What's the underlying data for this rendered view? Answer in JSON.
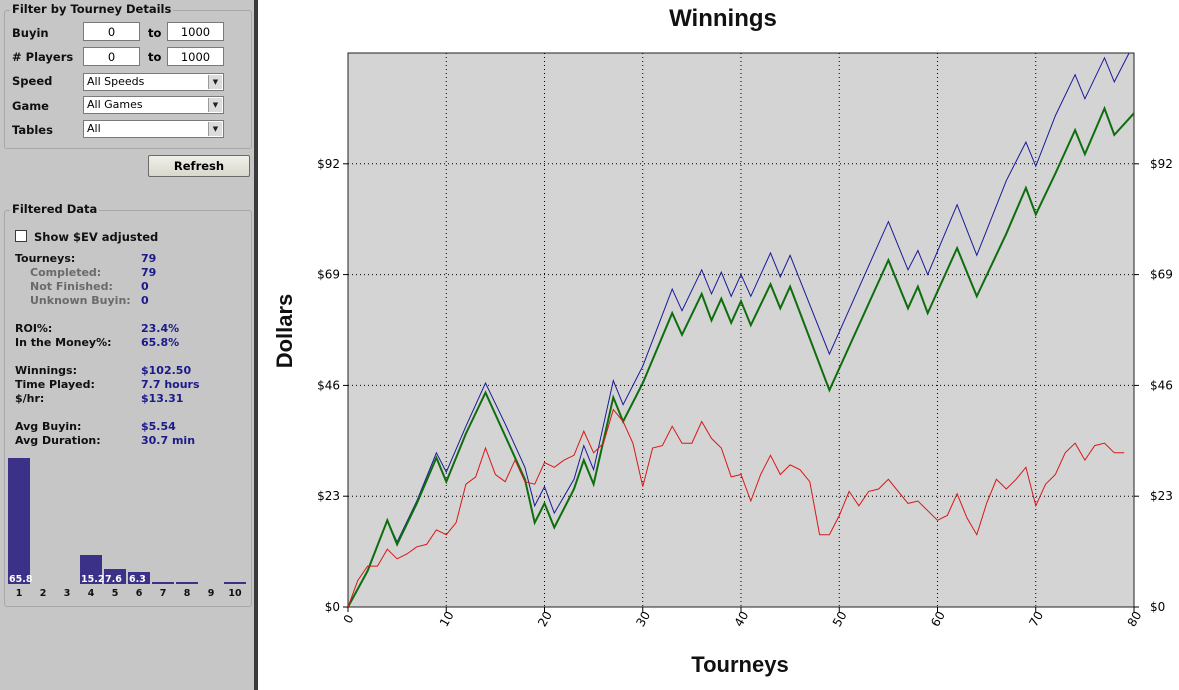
{
  "filter": {
    "title": "Filter by Tourney Details",
    "buyin_label": "Buyin",
    "buyin_min": "0",
    "buyin_max": "1000",
    "players_label": "# Players",
    "players_min": "0",
    "players_max": "1000",
    "to_label": "to",
    "speed_label": "Speed",
    "speed_value": "All Speeds",
    "game_label": "Game",
    "game_value": "All Games",
    "tables_label": "Tables",
    "tables_value": "All",
    "refresh_label": "Refresh"
  },
  "filtered": {
    "title": "Filtered Data",
    "show_ev_label": "Show $EV adjusted",
    "show_ev_checked": false,
    "stats": [
      {
        "key": "Tourneys:",
        "value": "79",
        "sub": false
      },
      {
        "key": "Completed:",
        "value": "79",
        "sub": true
      },
      {
        "key": "Not Finished:",
        "value": "0",
        "sub": true
      },
      {
        "key": "Unknown Buyin:",
        "value": "0",
        "sub": true
      },
      {
        "key": "ROI%:",
        "value": "23.4%",
        "sub": false
      },
      {
        "key": "In the Money%:",
        "value": "65.8%",
        "sub": false
      },
      {
        "key": "Winnings:",
        "value": "$102.50",
        "sub": false
      },
      {
        "key": "Time Played:",
        "value": "7.7 hours",
        "sub": false
      },
      {
        "key": "$/hr:",
        "value": "$13.31",
        "sub": false
      },
      {
        "key": "Avg Buyin:",
        "value": "$5.54",
        "sub": false
      },
      {
        "key": "Avg Duration:",
        "value": "30.7 min",
        "sub": false
      }
    ]
  },
  "finish_histogram": {
    "positions": [
      "1",
      "2",
      "3",
      "4",
      "5",
      "6",
      "7",
      "8",
      "9",
      "10"
    ],
    "percents": [
      65.8,
      0,
      0,
      15.2,
      7.6,
      6.3,
      0.8,
      0.8,
      0,
      0.8
    ],
    "labels": [
      "65.8",
      "",
      "",
      "15.2",
      "7.6",
      "6.3",
      "",
      "",
      "",
      ""
    ],
    "color": "#3c3188"
  },
  "chart_data": {
    "type": "line",
    "title": "Winnings",
    "xlabel": "Tourneys",
    "ylabel": "Dollars",
    "xlim": [
      0,
      80
    ],
    "ylim": [
      0,
      115
    ],
    "x_ticks": [
      "0",
      "10",
      "20",
      "30",
      "40",
      "50",
      "60",
      "70",
      "80"
    ],
    "y_ticks": [
      "$0",
      "$23",
      "$46",
      "$69",
      "$92"
    ],
    "y_tick_values": [
      0,
      23,
      46,
      69,
      92
    ],
    "grid": true,
    "background": "#d4d4d4",
    "series": [
      {
        "color": "#1a1a9a",
        "width": 1,
        "points": [
          [
            0,
            0
          ],
          [
            2,
            7.5
          ],
          [
            4,
            18
          ],
          [
            5,
            13.5
          ],
          [
            7,
            22
          ],
          [
            9,
            32
          ],
          [
            10,
            28
          ],
          [
            12,
            37.5
          ],
          [
            14,
            46.5
          ],
          [
            16,
            38
          ],
          [
            18,
            29
          ],
          [
            19,
            21
          ],
          [
            20,
            25
          ],
          [
            21,
            19.5
          ],
          [
            23,
            26.5
          ],
          [
            24,
            33.5
          ],
          [
            25,
            28.5
          ],
          [
            27,
            47
          ],
          [
            28,
            42
          ],
          [
            30,
            50
          ],
          [
            33,
            66
          ],
          [
            34,
            61.5
          ],
          [
            36,
            70
          ],
          [
            37,
            65
          ],
          [
            38,
            69.5
          ],
          [
            39,
            64.5
          ],
          [
            40,
            69
          ],
          [
            41,
            64.5
          ],
          [
            43,
            73.5
          ],
          [
            44,
            68.5
          ],
          [
            45,
            73
          ],
          [
            49,
            52.5
          ],
          [
            55,
            80
          ],
          [
            57,
            70
          ],
          [
            58,
            74
          ],
          [
            59,
            69
          ],
          [
            62,
            83.5
          ],
          [
            64,
            73
          ],
          [
            67,
            88.5
          ],
          [
            69,
            96.5
          ],
          [
            70,
            91.5
          ],
          [
            72,
            102
          ],
          [
            74,
            110.5
          ],
          [
            75,
            105.5
          ],
          [
            77,
            114
          ],
          [
            78,
            109
          ],
          [
            80,
            117
          ]
        ]
      },
      {
        "color": "#0e6e0e",
        "width": 2,
        "points": [
          [
            0,
            0
          ],
          [
            2,
            7.5
          ],
          [
            4,
            18
          ],
          [
            5,
            13
          ],
          [
            7,
            21.5
          ],
          [
            9,
            31
          ],
          [
            10,
            26
          ],
          [
            12,
            36
          ],
          [
            14,
            44.5
          ],
          [
            16,
            35.5
          ],
          [
            18,
            26.5
          ],
          [
            19,
            17.5
          ],
          [
            20,
            21.5
          ],
          [
            21,
            16.5
          ],
          [
            23,
            24.5
          ],
          [
            24,
            30.5
          ],
          [
            25,
            25.5
          ],
          [
            27,
            43.5
          ],
          [
            28,
            38.5
          ],
          [
            30,
            46.5
          ],
          [
            33,
            61
          ],
          [
            34,
            56.5
          ],
          [
            36,
            65
          ],
          [
            37,
            59.5
          ],
          [
            38,
            64
          ],
          [
            39,
            59
          ],
          [
            40,
            63.5
          ],
          [
            41,
            58.5
          ],
          [
            43,
            67
          ],
          [
            44,
            62
          ],
          [
            45,
            66.5
          ],
          [
            49,
            45
          ],
          [
            55,
            72
          ],
          [
            57,
            62
          ],
          [
            58,
            66.5
          ],
          [
            59,
            61
          ],
          [
            62,
            74.5
          ],
          [
            64,
            64.5
          ],
          [
            67,
            77.5
          ],
          [
            69,
            87
          ],
          [
            70,
            81.5
          ],
          [
            72,
            90
          ],
          [
            74,
            99
          ],
          [
            75,
            94
          ],
          [
            77,
            103.5
          ],
          [
            78,
            98
          ],
          [
            80,
            102.5
          ]
        ]
      },
      {
        "color": "#d81818",
        "width": 1,
        "points": [
          [
            0,
            0
          ],
          [
            1,
            5.5
          ],
          [
            2,
            8.5
          ],
          [
            3,
            8.5
          ],
          [
            4,
            12
          ],
          [
            5,
            10
          ],
          [
            6,
            11
          ],
          [
            7,
            12.5
          ],
          [
            8,
            13
          ],
          [
            9,
            16
          ],
          [
            10,
            15
          ],
          [
            11,
            17.5
          ],
          [
            12,
            25.5
          ],
          [
            13,
            27
          ],
          [
            14,
            33
          ],
          [
            15,
            27.5
          ],
          [
            16,
            26
          ],
          [
            17,
            30.5
          ],
          [
            18,
            26
          ],
          [
            19,
            25.5
          ],
          [
            20,
            30
          ],
          [
            21,
            29
          ],
          [
            22,
            30.5
          ],
          [
            23,
            31.5
          ],
          [
            24,
            36.5
          ],
          [
            25,
            32
          ],
          [
            26,
            34
          ],
          [
            27,
            41
          ],
          [
            28,
            38.5
          ],
          [
            29,
            34
          ],
          [
            30,
            25
          ],
          [
            31,
            33
          ],
          [
            32,
            33.5
          ],
          [
            33,
            37.5
          ],
          [
            34,
            34
          ],
          [
            35,
            34
          ],
          [
            36,
            38.5
          ],
          [
            37,
            35
          ],
          [
            38,
            33
          ],
          [
            39,
            27
          ],
          [
            40,
            27.5
          ],
          [
            41,
            22
          ],
          [
            42,
            27.5
          ],
          [
            43,
            31.5
          ],
          [
            44,
            27.5
          ],
          [
            45,
            29.5
          ],
          [
            46,
            28.5
          ],
          [
            47,
            26
          ],
          [
            48,
            15
          ],
          [
            49,
            15
          ],
          [
            50,
            19
          ],
          [
            51,
            24
          ],
          [
            52,
            21
          ],
          [
            53,
            24
          ],
          [
            54,
            24.5
          ],
          [
            55,
            26.5
          ],
          [
            56,
            24
          ],
          [
            57,
            21.5
          ],
          [
            58,
            22
          ],
          [
            59,
            20
          ],
          [
            60,
            18
          ],
          [
            61,
            19
          ],
          [
            62,
            23.5
          ],
          [
            63,
            18.5
          ],
          [
            64,
            15
          ],
          [
            65,
            21.5
          ],
          [
            66,
            26.5
          ],
          [
            67,
            24.5
          ],
          [
            68,
            26.5
          ],
          [
            69,
            29
          ],
          [
            70,
            21
          ],
          [
            71,
            25.5
          ],
          [
            72,
            27.5
          ],
          [
            73,
            32
          ],
          [
            74,
            34
          ],
          [
            75,
            30.5
          ],
          [
            76,
            33.5
          ],
          [
            77,
            34
          ],
          [
            78,
            32
          ],
          [
            79,
            32
          ]
        ]
      }
    ]
  }
}
